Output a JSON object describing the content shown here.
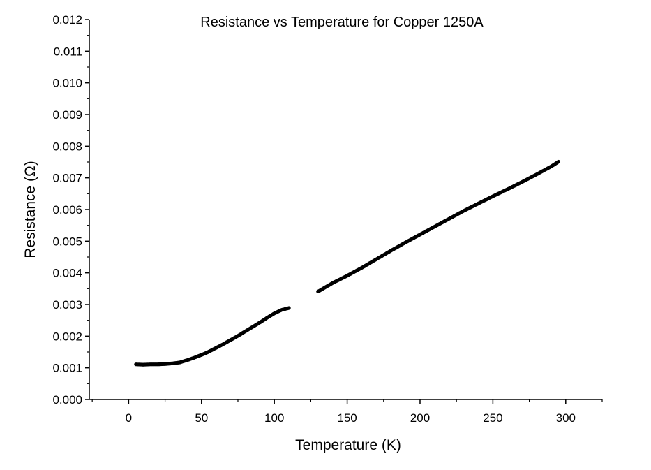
{
  "chart_data": {
    "type": "scatter",
    "title": "Resistance vs Temperature for Copper 1250A",
    "xlabel": "Temperature (K)",
    "ylabel": "Resistance (Ω)",
    "xlim": [
      -27,
      325
    ],
    "ylim": [
      0,
      0.012
    ],
    "x_ticks": [
      0,
      50,
      100,
      150,
      200,
      250,
      300
    ],
    "x_tick_labels": [
      "0",
      "50",
      "100",
      "150",
      "200",
      "250",
      "300"
    ],
    "y_ticks": [
      0,
      0.001,
      0.002,
      0.003,
      0.004,
      0.005,
      0.006,
      0.007,
      0.008,
      0.009,
      0.01,
      0.011,
      0.012
    ],
    "y_tick_labels": [
      "0.000",
      "0.001",
      "0.002",
      "0.003",
      "0.004",
      "0.005",
      "0.006",
      "0.007",
      "0.008",
      "0.009",
      "0.010",
      "0.011",
      "0.012"
    ],
    "grid": false,
    "legend": "none",
    "marker_color": "#000000",
    "series": [
      {
        "x": [
          5,
          10,
          15,
          20,
          25,
          30,
          35,
          40,
          45,
          50,
          55,
          60,
          65,
          70,
          75,
          80,
          85,
          90,
          95,
          100,
          105,
          110
        ],
        "y": [
          0.00111,
          0.0011,
          0.00111,
          0.00111,
          0.00112,
          0.00114,
          0.00117,
          0.00124,
          0.00132,
          0.00141,
          0.00151,
          0.00163,
          0.00175,
          0.00188,
          0.00201,
          0.00215,
          0.00229,
          0.00243,
          0.00258,
          0.00272,
          0.00283,
          0.00289
        ]
      },
      {
        "x": [
          130,
          140,
          150,
          160,
          170,
          180,
          190,
          200,
          210,
          220,
          230,
          240,
          250,
          260,
          270,
          280,
          290,
          295
        ],
        "y": [
          0.00341,
          0.00368,
          0.00391,
          0.00416,
          0.00443,
          0.0047,
          0.00496,
          0.00521,
          0.00546,
          0.00571,
          0.00596,
          0.00619,
          0.00642,
          0.00664,
          0.00687,
          0.00711,
          0.00736,
          0.00751
        ]
      }
    ]
  }
}
